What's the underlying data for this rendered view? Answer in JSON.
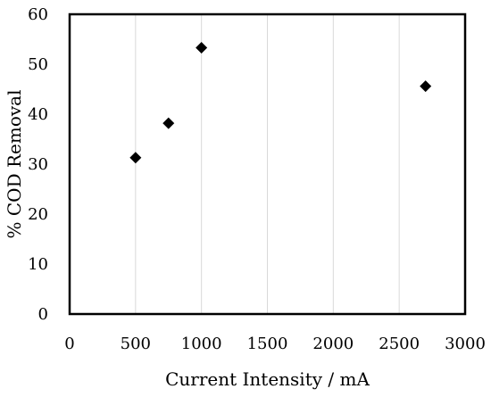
{
  "chart_data": {
    "type": "scatter",
    "title": "",
    "xlabel": "Current Intensity / mA",
    "ylabel": "% COD Removal",
    "xlim": [
      0,
      3000
    ],
    "ylim": [
      0,
      60
    ],
    "xticks": [
      0,
      500,
      1000,
      1500,
      2000,
      2500,
      3000
    ],
    "yticks": [
      0,
      10,
      20,
      30,
      40,
      50,
      60
    ],
    "grid": "vertical",
    "marker": "diamond",
    "marker_color": "#000000",
    "points": [
      {
        "x": 500,
        "y": 31.3
      },
      {
        "x": 750,
        "y": 38.2
      },
      {
        "x": 1000,
        "y": 53.3
      },
      {
        "x": 2700,
        "y": 45.6
      }
    ]
  }
}
